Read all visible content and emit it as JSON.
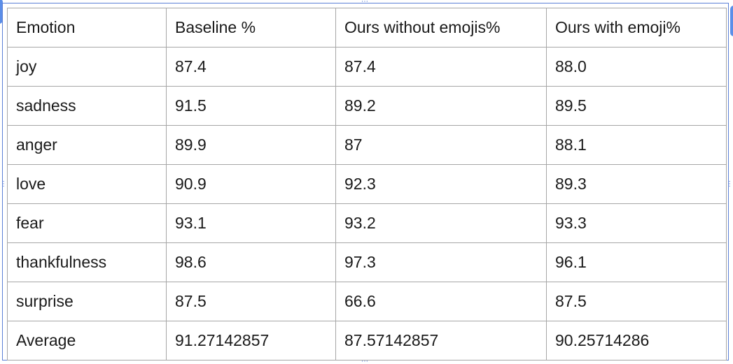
{
  "table": {
    "headers": [
      "Emotion",
      "Baseline %",
      "Ours without emojis%",
      "Ours with emoji%"
    ],
    "rows": [
      [
        "joy",
        "87.4",
        "87.4",
        "88.0"
      ],
      [
        "sadness",
        "91.5",
        "89.2",
        "89.5"
      ],
      [
        "anger",
        "89.9",
        "87",
        "88.1"
      ],
      [
        "love",
        "90.9",
        "92.3",
        "89.3"
      ],
      [
        "fear",
        "93.1",
        "93.2",
        "93.3"
      ],
      [
        "thankfulness",
        "98.6",
        "97.3",
        "96.1"
      ],
      [
        "surprise",
        "87.5",
        "66.6",
        "87.5"
      ],
      [
        "Average",
        "91.27142857",
        "87.57142857",
        "90.25714286"
      ]
    ]
  },
  "colors": {
    "frame": "#5b7fd6",
    "grid": "#a6a6a6",
    "text": "#1a1a1a"
  }
}
